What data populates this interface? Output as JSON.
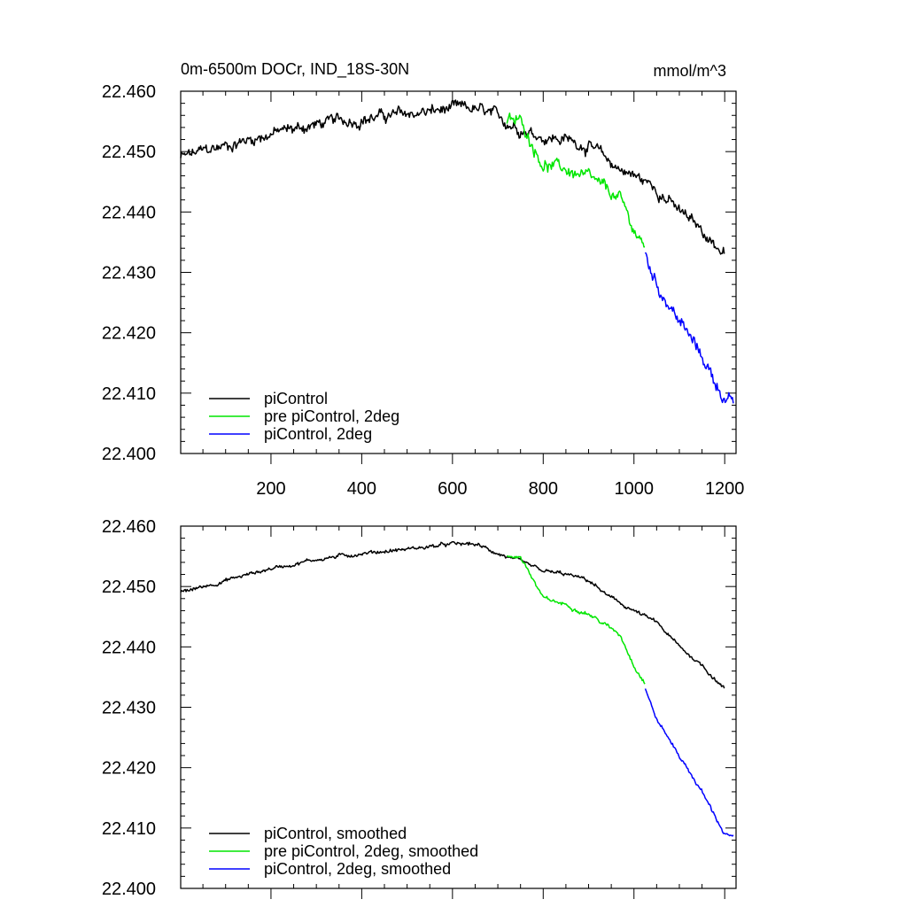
{
  "chart_data": [
    {
      "type": "line",
      "title_left": "0m-6500m DOCr, IND_18S-30N",
      "title_right": "mmol/m^3",
      "xlim": [
        1,
        1225
      ],
      "ylim": [
        22.4,
        22.46
      ],
      "x_ticks": [
        200,
        400,
        600,
        800,
        1000,
        1200
      ],
      "x_tick_labels": [
        "200",
        "400",
        "600",
        "800",
        "1000",
        "1200"
      ],
      "y_ticks": [
        22.4,
        22.41,
        22.42,
        22.43,
        22.44,
        22.45,
        22.46
      ],
      "y_tick_labels": [
        "22.400",
        "22.410",
        "22.420",
        "22.430",
        "22.440",
        "22.450",
        "22.460"
      ],
      "noise": 0.0011,
      "legend_position": "bottom-left",
      "series": [
        {
          "name": "piControl",
          "color": "#000000",
          "x": [
            1,
            100,
            200,
            300,
            400,
            500,
            600,
            650,
            700,
            750,
            800,
            850,
            900,
            950,
            1000,
            1050,
            1100,
            1150,
            1200
          ],
          "y": [
            22.449,
            22.451,
            22.453,
            22.4545,
            22.4555,
            22.4562,
            22.457,
            22.457,
            22.4555,
            22.454,
            22.4525,
            22.452,
            22.451,
            22.448,
            22.446,
            22.444,
            22.44,
            22.437,
            22.433
          ]
        },
        {
          "name": "pre piControl, 2deg",
          "color": "#00e600",
          "x": [
            720,
            750,
            800,
            850,
            900,
            950,
            970,
            1000,
            1025
          ],
          "y": [
            22.455,
            22.455,
            22.448,
            22.447,
            22.4455,
            22.443,
            22.442,
            22.437,
            22.434
          ]
        },
        {
          "name": "piControl, 2deg",
          "color": "#0000ff",
          "x": [
            1025,
            1050,
            1100,
            1150,
            1200,
            1220
          ],
          "y": [
            22.433,
            22.428,
            22.422,
            22.416,
            22.409,
            22.4085
          ]
        }
      ]
    },
    {
      "type": "line",
      "title_left": "",
      "title_right": "",
      "xlim": [
        1,
        1225
      ],
      "ylim": [
        22.4,
        22.46
      ],
      "x_ticks": [
        200,
        400,
        600,
        800,
        1000,
        1200
      ],
      "x_tick_labels": [],
      "y_ticks": [
        22.4,
        22.41,
        22.42,
        22.43,
        22.44,
        22.45,
        22.46
      ],
      "y_tick_labels": [
        "22.400",
        "22.410",
        "22.420",
        "22.430",
        "22.440",
        "22.450",
        "22.460"
      ],
      "noise": 0.00035,
      "legend_position": "bottom-left",
      "series": [
        {
          "name": "piControl, smoothed",
          "color": "#000000",
          "x": [
            1,
            100,
            200,
            300,
            400,
            500,
            600,
            650,
            700,
            750,
            800,
            850,
            900,
            950,
            1000,
            1050,
            1100,
            1150,
            1200
          ],
          "y": [
            22.449,
            22.451,
            22.453,
            22.4545,
            22.4555,
            22.4562,
            22.457,
            22.457,
            22.4555,
            22.454,
            22.4525,
            22.452,
            22.451,
            22.448,
            22.446,
            22.444,
            22.44,
            22.437,
            22.433
          ]
        },
        {
          "name": "pre piControl, 2deg, smoothed",
          "color": "#00e600",
          "x": [
            720,
            750,
            800,
            850,
            900,
            950,
            970,
            1000,
            1025
          ],
          "y": [
            22.455,
            22.455,
            22.448,
            22.447,
            22.4455,
            22.443,
            22.442,
            22.437,
            22.434
          ]
        },
        {
          "name": "piControl, 2deg, smoothed",
          "color": "#0000ff",
          "x": [
            1025,
            1050,
            1100,
            1150,
            1200,
            1220
          ],
          "y": [
            22.433,
            22.428,
            22.422,
            22.416,
            22.409,
            22.4085
          ]
        }
      ]
    }
  ]
}
